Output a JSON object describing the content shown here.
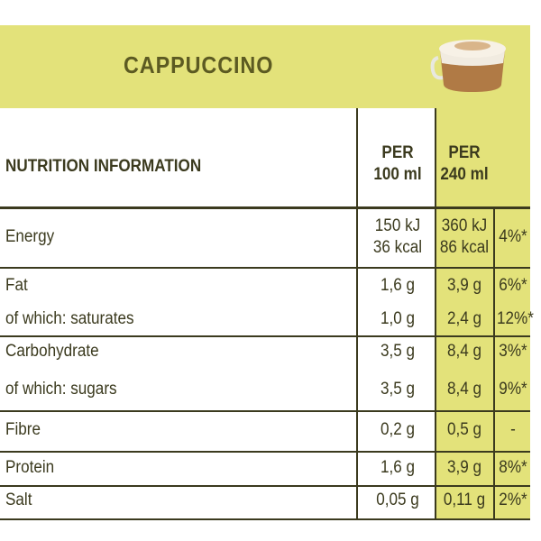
{
  "title": "CAPPUCCINO",
  "header": {
    "label": "NUTRITION INFORMATION",
    "per_100ml": [
      "PER",
      "100 ml"
    ],
    "per_240ml": [
      "PER",
      "240 ml"
    ]
  },
  "table": {
    "rows": [
      {
        "label": "Energy",
        "per_100ml": [
          "150 kJ",
          "36 kcal"
        ],
        "per_240ml": [
          "360 kJ",
          "86 kcal"
        ],
        "ri": "4%*"
      },
      {
        "label": "Fat",
        "per_100ml": "1,6 g",
        "per_240ml": "3,9 g",
        "ri": "6%*"
      },
      {
        "label": "of which: saturates",
        "per_100ml": "1,0 g",
        "per_240ml": "2,4 g",
        "ri": "12%*"
      },
      {
        "label": "Carbohydrate",
        "per_100ml": "3,5 g",
        "per_240ml": "8,4 g",
        "ri": "3%*"
      },
      {
        "label": "of which: sugars",
        "per_100ml": "3,5 g",
        "per_240ml": "8,4 g",
        "ri": "9%*"
      },
      {
        "label": "Fibre",
        "per_100ml": "0,2 g",
        "per_240ml": "0,5 g",
        "ri": "-"
      },
      {
        "label": "Protein",
        "per_100ml": "1,6 g",
        "per_240ml": "3,9 g",
        "ri": "8%*"
      },
      {
        "label": "Salt",
        "per_100ml": "0,05 g",
        "per_240ml": "0,11 g",
        "ri": "2%*"
      }
    ]
  }
}
